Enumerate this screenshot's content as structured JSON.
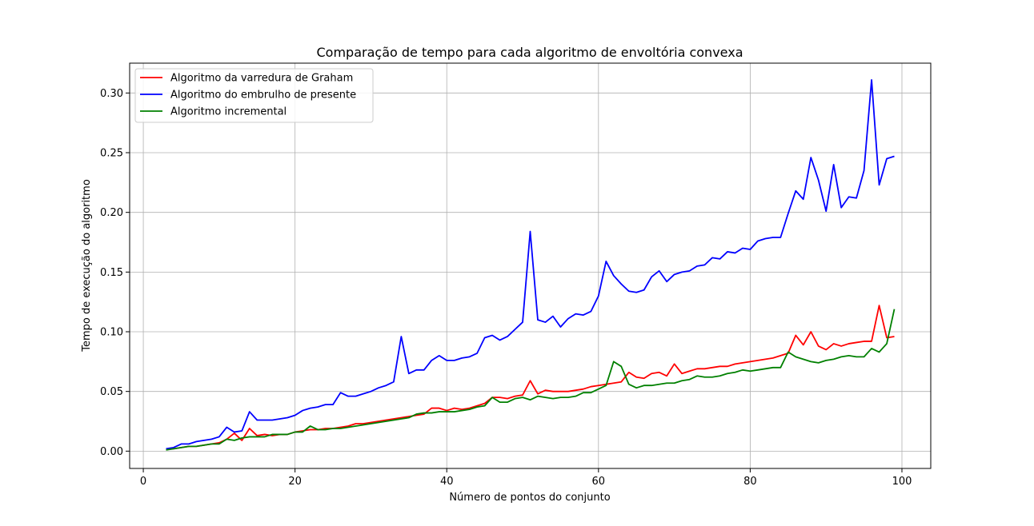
{
  "chart_data": {
    "type": "line",
    "title": "Comparação de tempo para cada algoritmo de envoltória convexa",
    "xlabel": "Número de pontos do conjunto",
    "ylabel": "Tempo de execução do algoritmo",
    "xlim": [
      -1.8,
      103.8
    ],
    "ylim": [
      -0.0145,
      0.325
    ],
    "xticks": [
      0,
      20,
      40,
      60,
      80,
      100
    ],
    "yticks": [
      0.0,
      0.05,
      0.1,
      0.15,
      0.2,
      0.25,
      0.3
    ],
    "xtick_labels": [
      "0",
      "20",
      "40",
      "60",
      "80",
      "100"
    ],
    "ytick_labels": [
      "0.00",
      "0.05",
      "0.10",
      "0.15",
      "0.20",
      "0.25",
      "0.30"
    ],
    "grid": true,
    "legend_position": "top-left",
    "x": [
      3,
      4,
      5,
      6,
      7,
      8,
      9,
      10,
      11,
      12,
      13,
      14,
      15,
      16,
      17,
      18,
      19,
      20,
      21,
      22,
      23,
      24,
      25,
      26,
      27,
      28,
      29,
      30,
      31,
      32,
      33,
      34,
      35,
      36,
      37,
      38,
      39,
      40,
      41,
      42,
      43,
      44,
      45,
      46,
      47,
      48,
      49,
      50,
      51,
      52,
      53,
      54,
      55,
      56,
      57,
      58,
      59,
      60,
      61,
      62,
      63,
      64,
      65,
      66,
      67,
      68,
      69,
      70,
      71,
      72,
      73,
      74,
      75,
      76,
      77,
      78,
      79,
      80,
      81,
      82,
      83,
      84,
      85,
      86,
      87,
      88,
      89,
      90,
      91,
      92,
      93,
      94,
      95,
      96,
      97,
      98,
      99
    ],
    "series": [
      {
        "name": "Algoritmo da varredura de Graham",
        "color": "#ff0000",
        "values": [
          0.002,
          0.002,
          0.003,
          0.004,
          0.004,
          0.005,
          0.006,
          0.007,
          0.01,
          0.015,
          0.009,
          0.019,
          0.013,
          0.014,
          0.013,
          0.014,
          0.014,
          0.016,
          0.017,
          0.018,
          0.018,
          0.019,
          0.019,
          0.02,
          0.021,
          0.023,
          0.023,
          0.024,
          0.025,
          0.026,
          0.027,
          0.028,
          0.029,
          0.03,
          0.031,
          0.036,
          0.036,
          0.034,
          0.036,
          0.035,
          0.036,
          0.038,
          0.04,
          0.045,
          0.045,
          0.044,
          0.046,
          0.047,
          0.059,
          0.048,
          0.051,
          0.05,
          0.05,
          0.05,
          0.051,
          0.052,
          0.054,
          0.055,
          0.056,
          0.057,
          0.058,
          0.066,
          0.062,
          0.061,
          0.065,
          0.066,
          0.063,
          0.073,
          0.065,
          0.067,
          0.069,
          0.069,
          0.07,
          0.071,
          0.071,
          0.073,
          0.074,
          0.075,
          0.076,
          0.077,
          0.078,
          0.08,
          0.082,
          0.097,
          0.089,
          0.1,
          0.088,
          0.085,
          0.09,
          0.088,
          0.09,
          0.091,
          0.092,
          0.092,
          0.122,
          0.095,
          0.096
        ]
      },
      {
        "name": "Algoritmo do embrulho de presente",
        "color": "#0000ff",
        "values": [
          0.002,
          0.003,
          0.006,
          0.006,
          0.008,
          0.009,
          0.01,
          0.012,
          0.02,
          0.016,
          0.017,
          0.033,
          0.026,
          0.026,
          0.026,
          0.027,
          0.028,
          0.03,
          0.034,
          0.036,
          0.037,
          0.039,
          0.039,
          0.049,
          0.046,
          0.046,
          0.048,
          0.05,
          0.053,
          0.055,
          0.058,
          0.096,
          0.065,
          0.068,
          0.068,
          0.076,
          0.08,
          0.076,
          0.076,
          0.078,
          0.079,
          0.082,
          0.095,
          0.097,
          0.093,
          0.096,
          0.102,
          0.108,
          0.184,
          0.11,
          0.108,
          0.113,
          0.104,
          0.111,
          0.115,
          0.114,
          0.117,
          0.13,
          0.159,
          0.147,
          0.14,
          0.134,
          0.133,
          0.135,
          0.146,
          0.151,
          0.142,
          0.148,
          0.15,
          0.151,
          0.155,
          0.156,
          0.162,
          0.161,
          0.167,
          0.166,
          0.17,
          0.169,
          0.176,
          0.178,
          0.179,
          0.179,
          0.199,
          0.218,
          0.211,
          0.246,
          0.227,
          0.201,
          0.24,
          0.204,
          0.213,
          0.212,
          0.235,
          0.311,
          0.223,
          0.245,
          0.247
        ]
      },
      {
        "name": "Algoritmo incremental",
        "color": "#008000",
        "values": [
          0.001,
          0.002,
          0.003,
          0.004,
          0.004,
          0.005,
          0.006,
          0.006,
          0.01,
          0.009,
          0.011,
          0.012,
          0.012,
          0.012,
          0.014,
          0.014,
          0.014,
          0.016,
          0.016,
          0.021,
          0.018,
          0.018,
          0.019,
          0.019,
          0.02,
          0.021,
          0.022,
          0.023,
          0.024,
          0.025,
          0.026,
          0.027,
          0.028,
          0.031,
          0.032,
          0.032,
          0.033,
          0.033,
          0.033,
          0.034,
          0.035,
          0.037,
          0.038,
          0.045,
          0.041,
          0.041,
          0.044,
          0.045,
          0.043,
          0.046,
          0.045,
          0.044,
          0.045,
          0.045,
          0.046,
          0.049,
          0.049,
          0.052,
          0.055,
          0.075,
          0.071,
          0.056,
          0.053,
          0.055,
          0.055,
          0.056,
          0.057,
          0.057,
          0.059,
          0.06,
          0.063,
          0.062,
          0.062,
          0.063,
          0.065,
          0.066,
          0.068,
          0.067,
          0.068,
          0.069,
          0.07,
          0.07,
          0.083,
          0.079,
          0.077,
          0.075,
          0.074,
          0.076,
          0.077,
          0.079,
          0.08,
          0.079,
          0.079,
          0.086,
          0.083,
          0.09,
          0.119
        ]
      }
    ]
  }
}
